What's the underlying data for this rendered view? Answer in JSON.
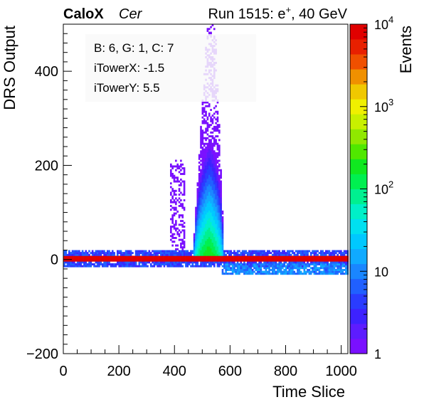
{
  "header": {
    "experiment": "CaloX",
    "channel": "Cer",
    "run_prefix": "Run 1515: e",
    "run_sup": "+",
    "run_suffix": ", 40 GeV"
  },
  "info_box": {
    "line1": "B: 6, G: 1, C: 7",
    "line2": "iTowerX: -1.5",
    "line3": "iTowerY: 5.5"
  },
  "chart_data": {
    "type": "heatmap",
    "xlabel": "Time Slice",
    "ylabel": "DRS Output",
    "zlabel": "Events",
    "xlim": [
      0,
      1024
    ],
    "ylim": [
      -200,
      500
    ],
    "zlim": [
      1,
      10000
    ],
    "z_scale": "log",
    "x_ticks": [
      0,
      200,
      400,
      600,
      800,
      1000
    ],
    "y_ticks": [
      -200,
      0,
      200,
      400
    ],
    "z_ticks": [
      {
        "value": 1,
        "label": "1"
      },
      {
        "value": 10,
        "label": "10"
      },
      {
        "value": 100,
        "label": "10",
        "sup": "2"
      },
      {
        "value": 1000,
        "label": "10",
        "sup": "3"
      },
      {
        "value": 10000,
        "label": "10",
        "sup": "4"
      }
    ],
    "palette": [
      "#7a10ff",
      "#5d1cff",
      "#3d22ff",
      "#2a3cff",
      "#2060ff",
      "#1a86ff",
      "#10aaff",
      "#00c8ff",
      "#00e0f0",
      "#00f0c8",
      "#00f090",
      "#00f050",
      "#10e820",
      "#50e800",
      "#90e800",
      "#c8f000",
      "#f0f000",
      "#f0c800",
      "#f09000",
      "#f05000",
      "#e82000",
      "#e00000"
    ],
    "regions": [
      {
        "name": "pedestal core",
        "x": [
          0,
          1024
        ],
        "y": [
          -5,
          7
        ],
        "z": 9000
      },
      {
        "name": "pedestal band",
        "x": [
          0,
          1024
        ],
        "y": [
          -15,
          20
        ],
        "z": 5
      },
      {
        "name": "signal pulse",
        "x": [
          465,
          580
        ],
        "y": [
          0,
          500
        ],
        "z_peak": 300
      },
      {
        "name": "undershoot",
        "x": [
          570,
          1024
        ],
        "y": [
          -30,
          -10
        ],
        "z": 10
      },
      {
        "name": "pre-pulse spike",
        "x": [
          385,
          440
        ],
        "y": [
          20,
          210
        ],
        "z": 1
      }
    ]
  }
}
